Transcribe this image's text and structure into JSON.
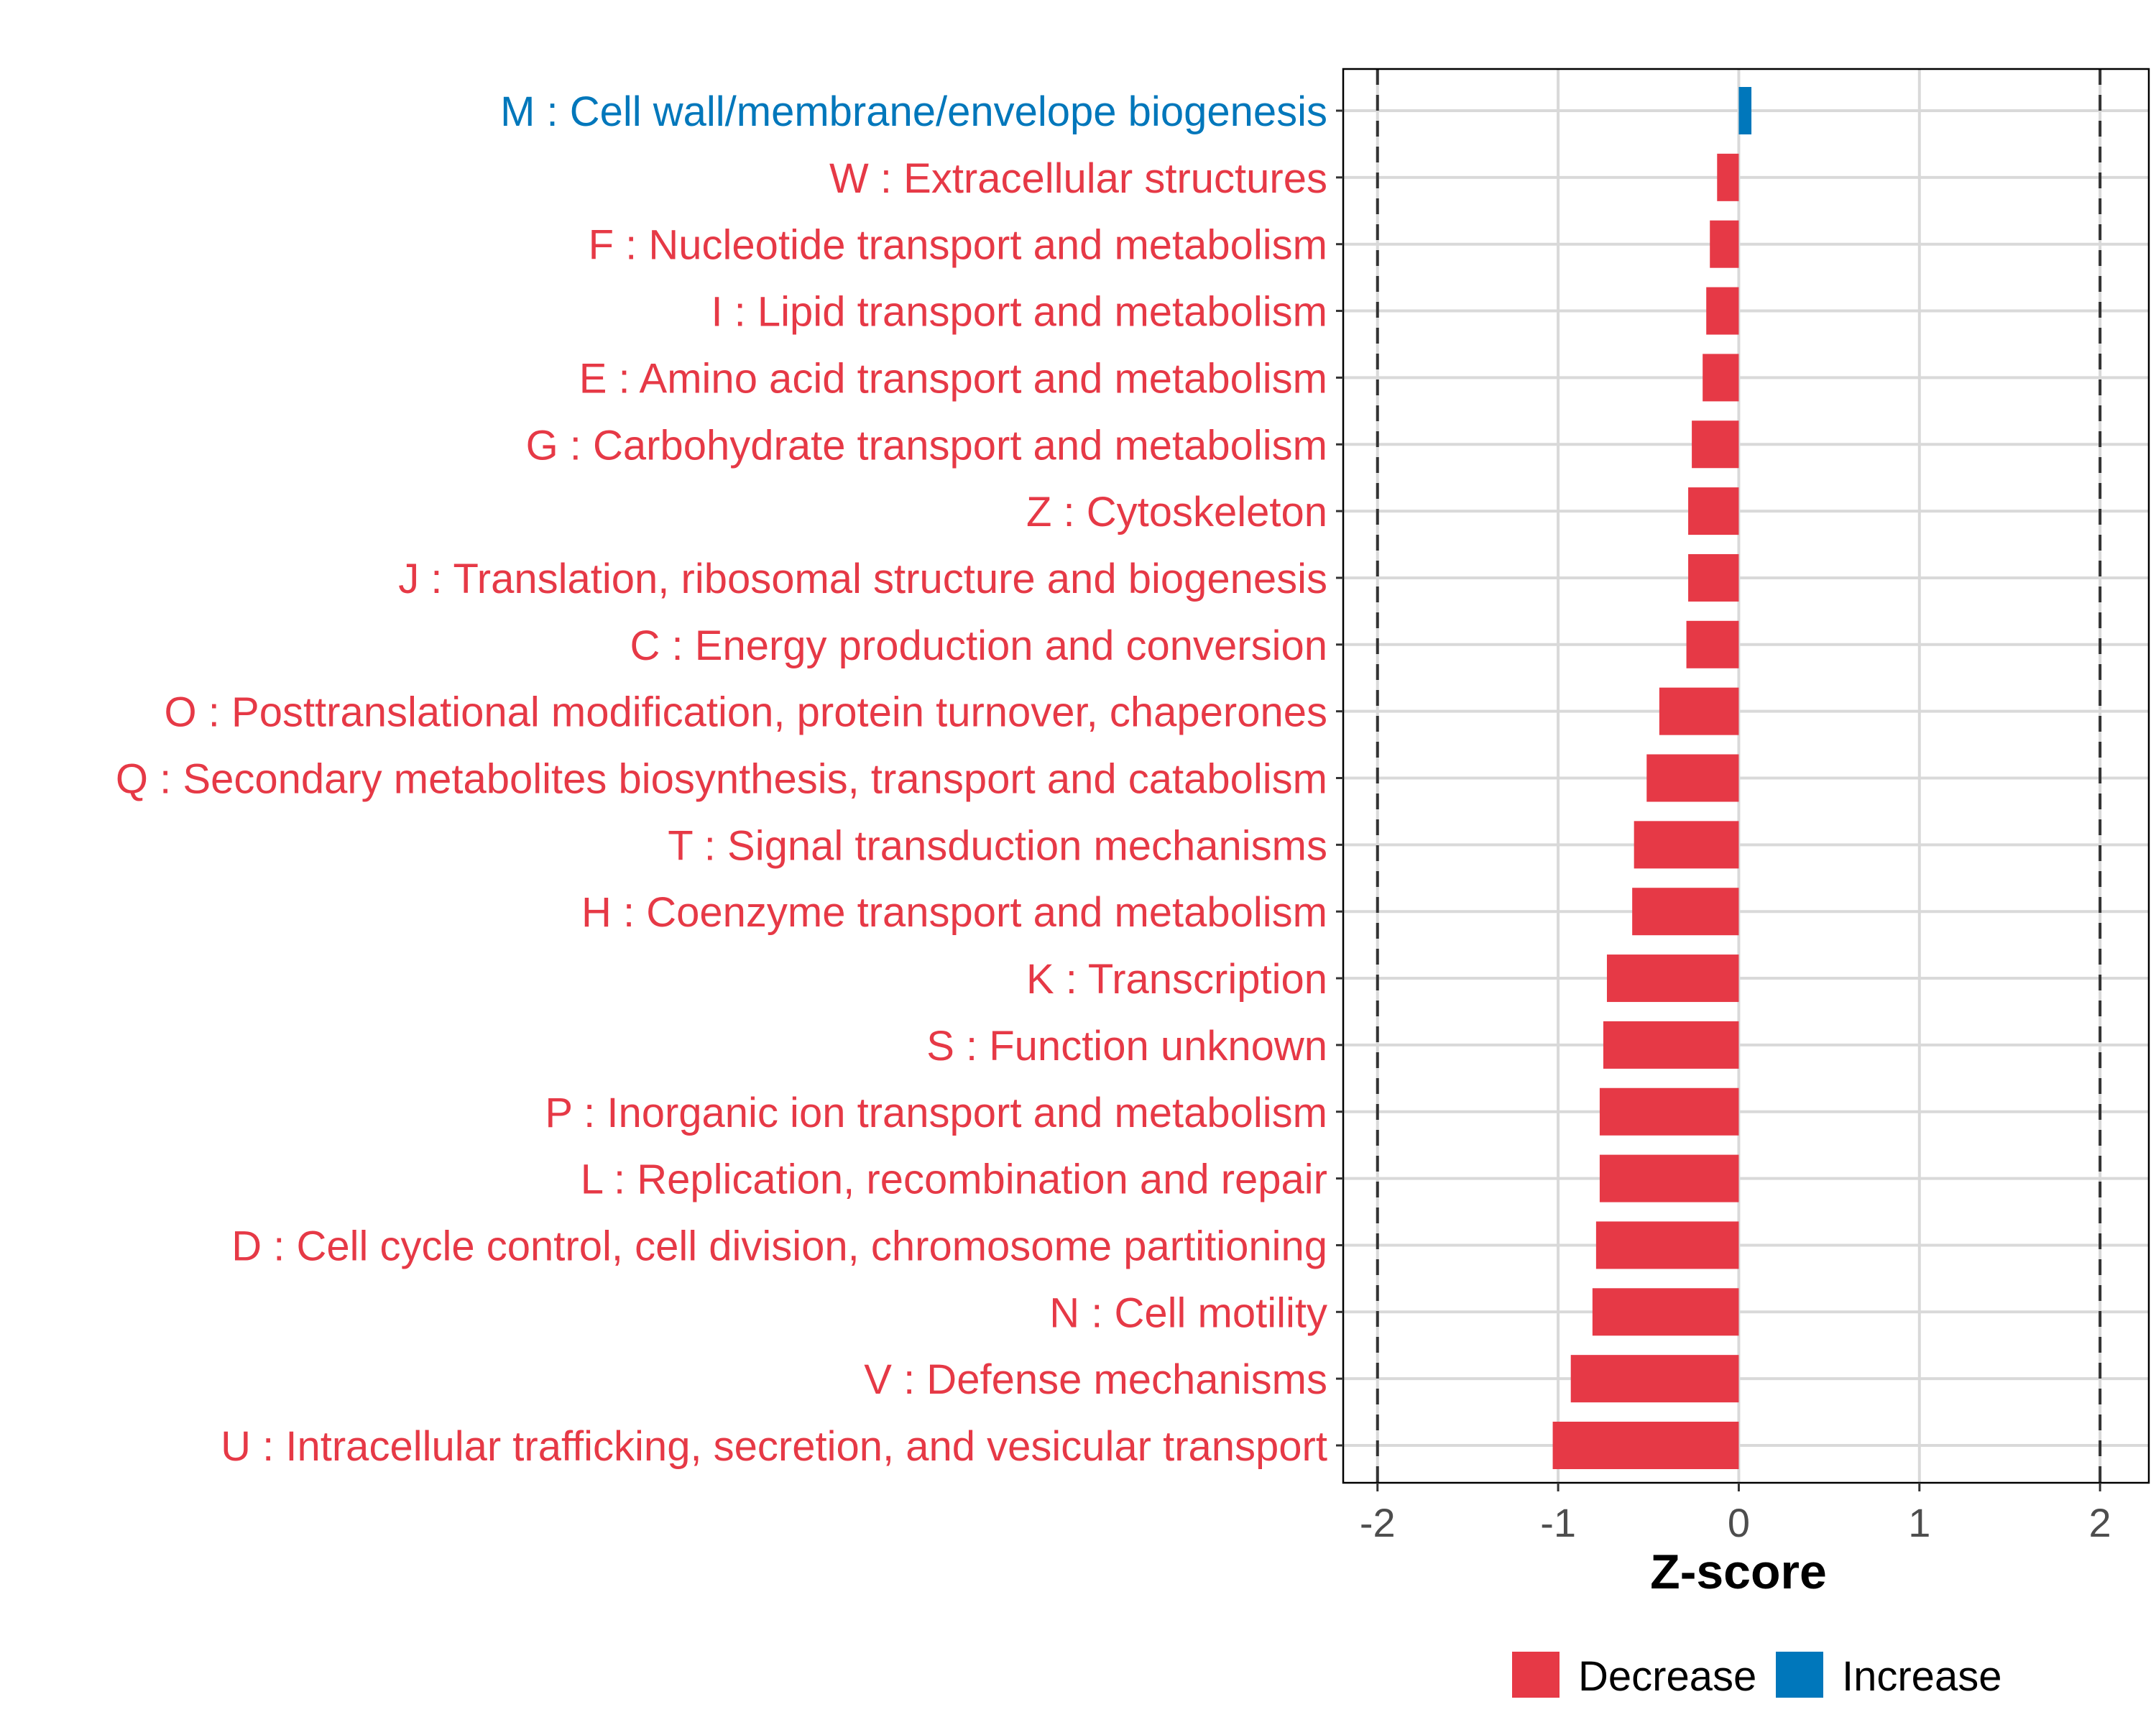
{
  "chart_data": {
    "type": "bar",
    "orientation": "horizontal",
    "title": "",
    "xlabel": "Z-score",
    "ylabel": "",
    "xlim": [
      -2.19,
      2.27
    ],
    "xticks": [
      -2,
      -1,
      0,
      1,
      2
    ],
    "xtick_labels": [
      "-2",
      "-1",
      "0",
      "1",
      "2"
    ],
    "reference_lines": [
      -2,
      2
    ],
    "grid": true,
    "categories": [
      "M : Cell wall/membrane/envelope biogenesis",
      "W : Extracellular structures",
      "F : Nucleotide transport and metabolism",
      "I : Lipid transport and metabolism",
      "E : Amino acid transport and metabolism",
      "G : Carbohydrate transport and metabolism",
      "Z : Cytoskeleton",
      "J : Translation, ribosomal structure and biogenesis",
      "C : Energy production and conversion",
      "O : Posttranslational modification, protein turnover, chaperones",
      "Q : Secondary metabolites biosynthesis, transport and catabolism",
      "T : Signal transduction mechanisms",
      "H : Coenzyme transport and metabolism",
      "K : Transcription",
      "S : Function unknown",
      "P : Inorganic ion transport and metabolism",
      "L : Replication, recombination and repair",
      "D : Cell cycle control, cell division, chromosome partitioning",
      "N : Cell motility",
      "V : Defense mechanisms",
      "U : Intracellular trafficking, secretion, and vesicular transport"
    ],
    "values": [
      0.07,
      -0.12,
      -0.16,
      -0.18,
      -0.2,
      -0.26,
      -0.28,
      -0.28,
      -0.29,
      -0.44,
      -0.51,
      -0.58,
      -0.59,
      -0.73,
      -0.75,
      -0.77,
      -0.77,
      -0.79,
      -0.81,
      -0.93,
      -1.03
    ],
    "legend": {
      "position": "bottom",
      "entries": [
        {
          "label": "Decrease",
          "color": "#E63946"
        },
        {
          "label": "Increase",
          "color": "#0077BB"
        }
      ]
    }
  }
}
